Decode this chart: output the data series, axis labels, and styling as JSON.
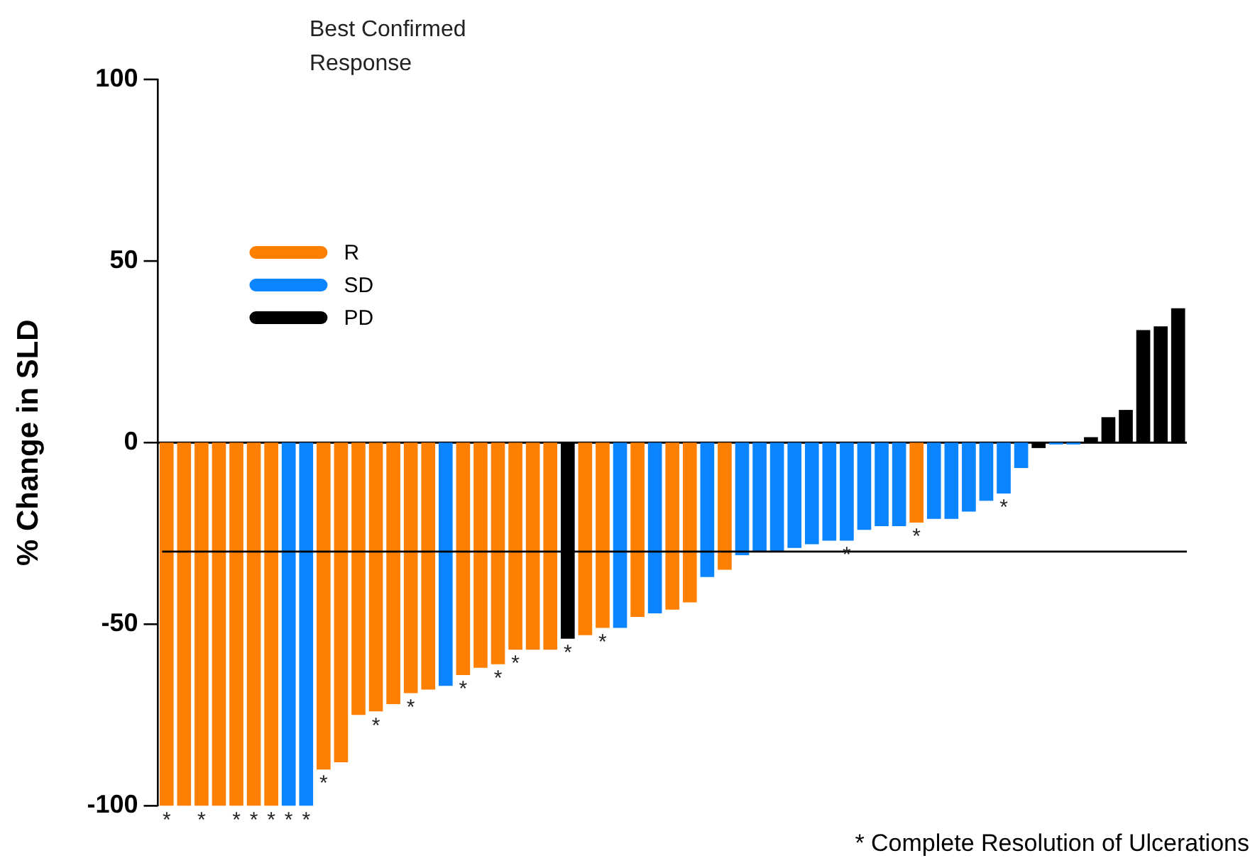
{
  "chart_data": {
    "type": "bar",
    "stacked": true,
    "ylabel": "% Change in SLD",
    "legend_title": "Best Confirmed Response",
    "legend": "top left",
    "categories": [
      null,
      null,
      null,
      null,
      null,
      null,
      null,
      null,
      null,
      null,
      null,
      null,
      null,
      null,
      null,
      null,
      null,
      null,
      null,
      null,
      null,
      null,
      null,
      null,
      null,
      null,
      null,
      null,
      null,
      null,
      null,
      null,
      null,
      null,
      null,
      null,
      null,
      null,
      null,
      null,
      null,
      null,
      null,
      null,
      null,
      null,
      null,
      null,
      null,
      null,
      null,
      null,
      null,
      null,
      null,
      null,
      null,
      null,
      null
    ],
    "ylim": [
      -100,
      100
    ],
    "yticks": [
      -100,
      -50,
      0,
      50,
      100
    ],
    "ref_lines": [
      {
        "axis": "y",
        "value": -30,
        "color": "#000000"
      }
    ],
    "annotations": [
      "* Complete Resolution of Ulcerations"
    ],
    "series": [
      {
        "name": "R",
        "color": "#ff7f00",
        "values": [
          -100,
          -100,
          -100,
          -100,
          -100,
          -100,
          -100,
          null,
          null,
          -90,
          -88,
          -75,
          -74,
          -72,
          -69,
          -68,
          null,
          -64,
          -62,
          -61,
          -57,
          -57,
          -57,
          null,
          -53,
          -51,
          null,
          -48,
          null,
          -46,
          -44,
          null,
          -35,
          null,
          null,
          null,
          null,
          null,
          null,
          null,
          null,
          null,
          null,
          -22,
          null,
          null,
          null,
          null,
          null,
          null,
          null,
          null,
          null,
          null,
          null,
          null,
          null,
          null,
          null
        ],
        "value_labels": [
          "*",
          null,
          "*",
          null,
          "*",
          "*",
          "*",
          null,
          null,
          "*",
          null,
          null,
          "*",
          null,
          "*",
          null,
          null,
          "*",
          null,
          "*",
          "*",
          null,
          null,
          null,
          null,
          "*",
          null,
          null,
          null,
          null,
          null,
          null,
          null,
          null,
          null,
          null,
          null,
          null,
          null,
          null,
          null,
          null,
          null,
          "*",
          null,
          null,
          null,
          null,
          null,
          null,
          null,
          null,
          null,
          null,
          null,
          null,
          null,
          null,
          null
        ]
      },
      {
        "name": "SD",
        "color": "#0a84ff",
        "values": [
          null,
          null,
          null,
          null,
          null,
          null,
          null,
          -100,
          -100,
          null,
          null,
          null,
          null,
          null,
          null,
          null,
          -67,
          null,
          null,
          null,
          null,
          null,
          null,
          null,
          null,
          null,
          -51,
          null,
          -47,
          null,
          null,
          -37,
          null,
          -31,
          -30,
          -30,
          -29,
          -28,
          -27,
          -27,
          -24,
          -23,
          -23,
          null,
          -21,
          -21,
          -19,
          -16,
          -14,
          -7,
          null,
          -0.5,
          -0.5,
          null,
          null,
          null,
          null,
          null,
          null
        ],
        "value_labels": [
          null,
          null,
          null,
          null,
          null,
          null,
          null,
          "*",
          "*",
          null,
          null,
          null,
          null,
          null,
          null,
          null,
          null,
          null,
          null,
          null,
          null,
          null,
          null,
          null,
          null,
          null,
          null,
          null,
          null,
          null,
          null,
          null,
          null,
          null,
          null,
          null,
          null,
          null,
          null,
          "*",
          null,
          null,
          null,
          null,
          null,
          null,
          null,
          null,
          "*",
          null,
          null,
          null,
          null,
          null,
          null,
          null,
          null,
          null,
          null
        ]
      },
      {
        "name": "PD",
        "color": "#000000",
        "values": [
          null,
          null,
          null,
          null,
          null,
          null,
          null,
          null,
          null,
          null,
          null,
          null,
          null,
          null,
          null,
          null,
          null,
          null,
          null,
          null,
          null,
          null,
          null,
          -54,
          null,
          null,
          null,
          null,
          null,
          null,
          null,
          null,
          null,
          null,
          null,
          null,
          null,
          null,
          null,
          null,
          null,
          null,
          null,
          null,
          null,
          null,
          null,
          null,
          null,
          null,
          -1.5,
          null,
          null,
          1.5,
          7,
          9,
          31,
          32,
          37
        ],
        "value_labels": [
          null,
          null,
          null,
          null,
          null,
          null,
          null,
          null,
          null,
          null,
          null,
          null,
          null,
          null,
          null,
          null,
          null,
          null,
          null,
          null,
          null,
          null,
          null,
          "*",
          null,
          null,
          null,
          null,
          null,
          null,
          null,
          null,
          null,
          null,
          null,
          null,
          null,
          null,
          null,
          null,
          null,
          null,
          null,
          null,
          null,
          null,
          null,
          null,
          null,
          null,
          null,
          null,
          null,
          null,
          null,
          null,
          null,
          null,
          null
        ]
      }
    ]
  }
}
